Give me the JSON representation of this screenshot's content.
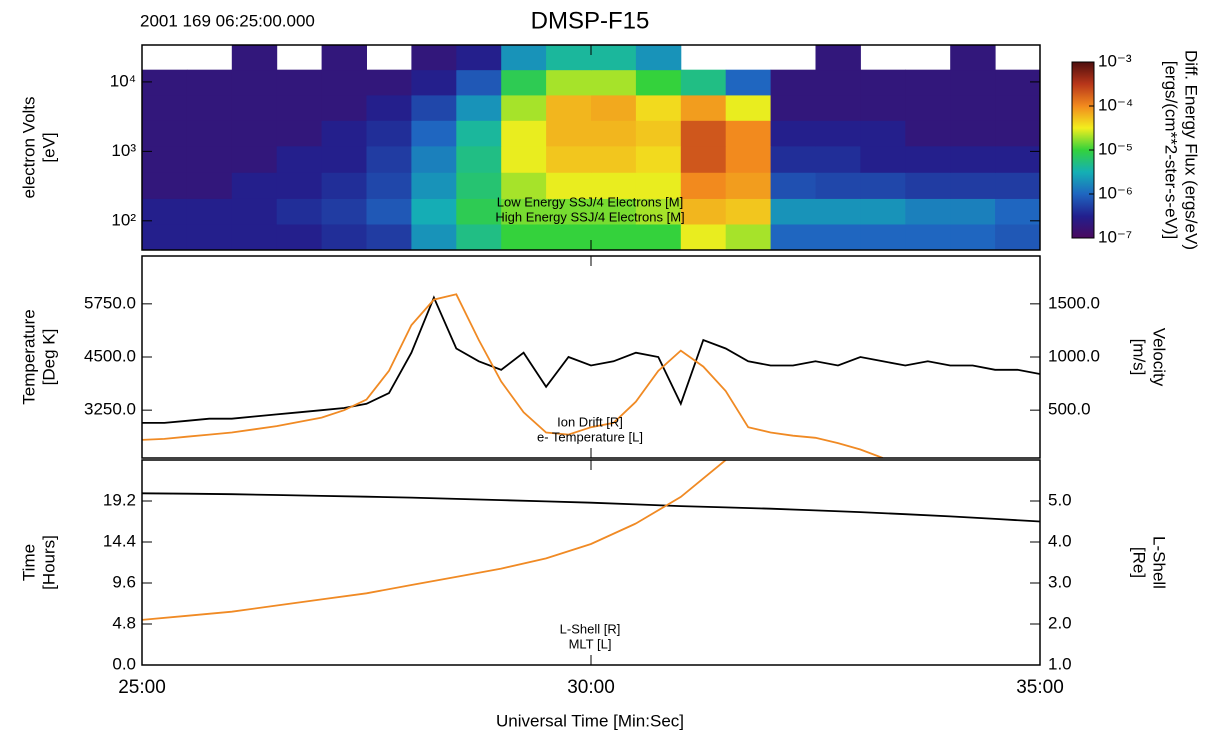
{
  "header": {
    "timestamp": "2001 169 06:25:00.000",
    "title": "DMSP-F15"
  },
  "x_axis": {
    "label": "Universal Time  [Min:Sec]",
    "xlim": [
      25,
      35
    ],
    "xticks": [
      {
        "value": 25,
        "label": "25:00"
      },
      {
        "value": 30,
        "label": "30:00"
      },
      {
        "value": 35,
        "label": "35:00"
      }
    ]
  },
  "chart_data": [
    {
      "type": "heatmap",
      "ylabel": [
        "electron Volts",
        "[eV]"
      ],
      "ylog": true,
      "ylim": [
        38,
        34000
      ],
      "yticks": [
        {
          "value": 100,
          "label": "10²"
        },
        {
          "value": 1000,
          "label": "10³"
        },
        {
          "value": 10000,
          "label": "10⁴"
        }
      ],
      "xbins": [
        25,
        25.5,
        26,
        26.5,
        27,
        27.5,
        28,
        28.5,
        29,
        29.5,
        30,
        30.5,
        31,
        31.5,
        32,
        32.5,
        33,
        33.5,
        34,
        34.5,
        35
      ],
      "ybins": [
        38,
        90,
        210,
        500,
        1200,
        2800,
        6500,
        15000,
        34000
      ],
      "values": [
        [
          3e-07,
          3e-07,
          3e-07,
          3e-07,
          4e-07,
          5e-07,
          2e-06,
          5e-06,
          1e-05,
          1e-05,
          1e-05,
          1e-05,
          3e-05,
          2e-05,
          1e-06,
          1e-06,
          1e-06,
          1e-06,
          1e-06,
          8e-07
        ],
        [
          3e-07,
          3e-07,
          3e-07,
          4e-07,
          5e-07,
          8e-07,
          3e-06,
          8e-06,
          1.5e-05,
          1.5e-05,
          1.5e-05,
          2e-05,
          6e-05,
          5e-05,
          2e-06,
          2e-06,
          2e-06,
          1.5e-06,
          1.5e-06,
          1e-06
        ],
        [
          2e-07,
          2e-07,
          3e-07,
          3e-07,
          4e-07,
          6e-07,
          2e-06,
          6e-06,
          2e-05,
          3e-05,
          3e-05,
          3e-05,
          0.0001,
          8e-05,
          7e-07,
          6e-07,
          6e-07,
          5e-07,
          5e-07,
          5e-07
        ],
        [
          2e-07,
          2e-07,
          2e-07,
          3e-07,
          3e-07,
          5e-07,
          1.5e-06,
          5e-06,
          3e-05,
          5e-05,
          5e-05,
          4e-05,
          0.0002,
          0.0001,
          4e-07,
          4e-07,
          3e-07,
          3e-07,
          3e-07,
          3e-07
        ],
        [
          2e-07,
          2e-07,
          2e-07,
          2e-07,
          3e-07,
          4e-07,
          1e-06,
          4e-06,
          3e-05,
          6e-05,
          6e-05,
          5e-05,
          0.0002,
          0.0001,
          3e-07,
          3e-07,
          3e-07,
          2e-07,
          2e-07,
          2e-07
        ],
        [
          2e-07,
          2e-07,
          2e-07,
          2e-07,
          2e-07,
          3e-07,
          6e-07,
          2e-06,
          2e-05,
          6e-05,
          7e-05,
          4e-05,
          8e-05,
          3e-05,
          2e-07,
          2e-07,
          2e-07,
          2e-07,
          2e-07,
          2e-07
        ],
        [
          2e-07,
          2e-07,
          2e-07,
          2e-07,
          2e-07,
          2e-07,
          3e-07,
          8e-07,
          8e-06,
          2e-05,
          2e-05,
          1e-05,
          5e-06,
          1e-06,
          2e-07,
          2e-07,
          2e-07,
          2e-07,
          2e-07,
          2e-07
        ],
        [
          null,
          null,
          2e-07,
          null,
          2e-07,
          null,
          2e-07,
          3e-07,
          2e-06,
          4e-06,
          4e-06,
          2e-06,
          null,
          null,
          null,
          2e-07,
          null,
          null,
          2e-07,
          null
        ]
      ],
      "colorbar": {
        "label": [
          "Diff. Energy Flux (ergs/eV)",
          "[ergs/(cm**2-ster-s-eV)]"
        ],
        "log": true,
        "clim": [
          1e-07,
          0.001
        ],
        "ticks": [
          {
            "value": 1e-07,
            "label": "10⁻⁷"
          },
          {
            "value": 1e-06,
            "label": "10⁻⁶"
          },
          {
            "value": 1e-05,
            "label": "10⁻⁵"
          },
          {
            "value": 0.0001,
            "label": "10⁻⁴"
          },
          {
            "value": 0.001,
            "label": "10⁻³"
          }
        ],
        "colors": [
          "#4a0a5e",
          "#22208e",
          "#1f66c0",
          "#14b0b4",
          "#34d23c",
          "#f2ee1e",
          "#f28a1e",
          "#b8361a",
          "#4e0e0e"
        ]
      },
      "annotations": [
        {
          "text": "Low Energy SSJ/4 Electrons [M]",
          "color": "#ffffff"
        },
        {
          "text": "High Energy SSJ/4 Electrons [M]",
          "color": "#ffffff"
        }
      ]
    },
    {
      "type": "line",
      "ylabel": [
        "Temperature",
        "[Deg K]"
      ],
      "y2label": [
        "Velocity",
        "[m/s]"
      ],
      "ylim": [
        2125,
        6875
      ],
      "yticks": [
        {
          "value": 3250,
          "label": "3250.0"
        },
        {
          "value": 4500,
          "label": "4500.0"
        },
        {
          "value": 5750,
          "label": "5750.0"
        }
      ],
      "y2lim": [
        50,
        1950
      ],
      "y2ticks": [
        {
          "value": 500,
          "label": "500.0"
        },
        {
          "value": 1000,
          "label": "1000.0"
        },
        {
          "value": 1500,
          "label": "1500.0"
        }
      ],
      "x": [
        25,
        25.25,
        25.5,
        25.75,
        26,
        26.25,
        26.5,
        26.75,
        27,
        27.25,
        27.5,
        27.75,
        28,
        28.25,
        28.5,
        28.75,
        29,
        29.25,
        29.5,
        29.75,
        30,
        30.25,
        30.5,
        30.75,
        31,
        31.25,
        31.5,
        31.75,
        32,
        32.25,
        32.5,
        32.75,
        33,
        33.25,
        33.5,
        33.75,
        34,
        34.25,
        34.5,
        34.75,
        35
      ],
      "series": [
        {
          "name": "e- Temperature [L]",
          "color": "#000000",
          "values": [
            2950,
            2950,
            3000,
            3050,
            3050,
            3100,
            3150,
            3200,
            3250,
            3300,
            3400,
            3650,
            4600,
            5900,
            4700,
            4400,
            4200,
            4600,
            3800,
            4500,
            4300,
            4400,
            4600,
            4500,
            3400,
            4900,
            4700,
            4400,
            4300,
            4300,
            4400,
            4300,
            4500,
            4400,
            4300,
            4400,
            4300,
            4300,
            4200,
            4200,
            4100
          ]
        },
        {
          "name": "Ion Drift [R]",
          "color": "#f08a24",
          "axis": "y2",
          "values": [
            220,
            230,
            250,
            270,
            290,
            320,
            350,
            390,
            430,
            500,
            600,
            870,
            1300,
            1540,
            1590,
            1160,
            770,
            480,
            290,
            270,
            340,
            380,
            580,
            870,
            1060,
            910,
            680,
            340,
            290,
            260,
            240,
            190,
            130,
            50,
            null,
            null,
            null,
            null,
            null,
            null,
            null
          ]
        }
      ]
    },
    {
      "type": "line",
      "ylabel": [
        "Time",
        "[Hours]"
      ],
      "y2label": [
        "L-Shell",
        "[Re]"
      ],
      "ylim": [
        0,
        24
      ],
      "yticks": [
        {
          "value": 0,
          "label": "0.0"
        },
        4.8,
        9.6,
        14.4,
        19.2
      ],
      "y2lim": [
        1,
        6
      ],
      "y2ticks": [
        {
          "value": 1,
          "label": "1.0"
        },
        {
          "value": 2,
          "label": "2.0"
        },
        {
          "value": 3,
          "label": "3.0"
        },
        {
          "value": 4,
          "label": "4.0"
        },
        {
          "value": 5,
          "label": "5.0"
        }
      ],
      "x": [
        25,
        25.5,
        26,
        26.5,
        27,
        27.5,
        28,
        28.5,
        29,
        29.5,
        30,
        30.5,
        31,
        31.5,
        32,
        32.5,
        33,
        33.5,
        34,
        34.5,
        35
      ],
      "series": [
        {
          "name": "MLT [L]",
          "color": "#000000",
          "values": [
            20.1,
            20.05,
            20.0,
            19.9,
            19.8,
            19.7,
            19.6,
            19.45,
            19.3,
            19.15,
            19.0,
            18.8,
            18.6,
            18.45,
            18.3,
            18.1,
            17.9,
            17.65,
            17.4,
            17.1,
            16.8
          ]
        },
        {
          "name": "L-Shell [R]",
          "color": "#f08a24",
          "axis": "y2",
          "values": [
            2.1,
            2.2,
            2.3,
            2.45,
            2.6,
            2.75,
            2.95,
            3.15,
            3.35,
            3.6,
            3.95,
            4.45,
            5.1,
            6.0,
            null,
            null,
            null,
            null,
            null,
            null,
            null
          ]
        }
      ]
    }
  ]
}
